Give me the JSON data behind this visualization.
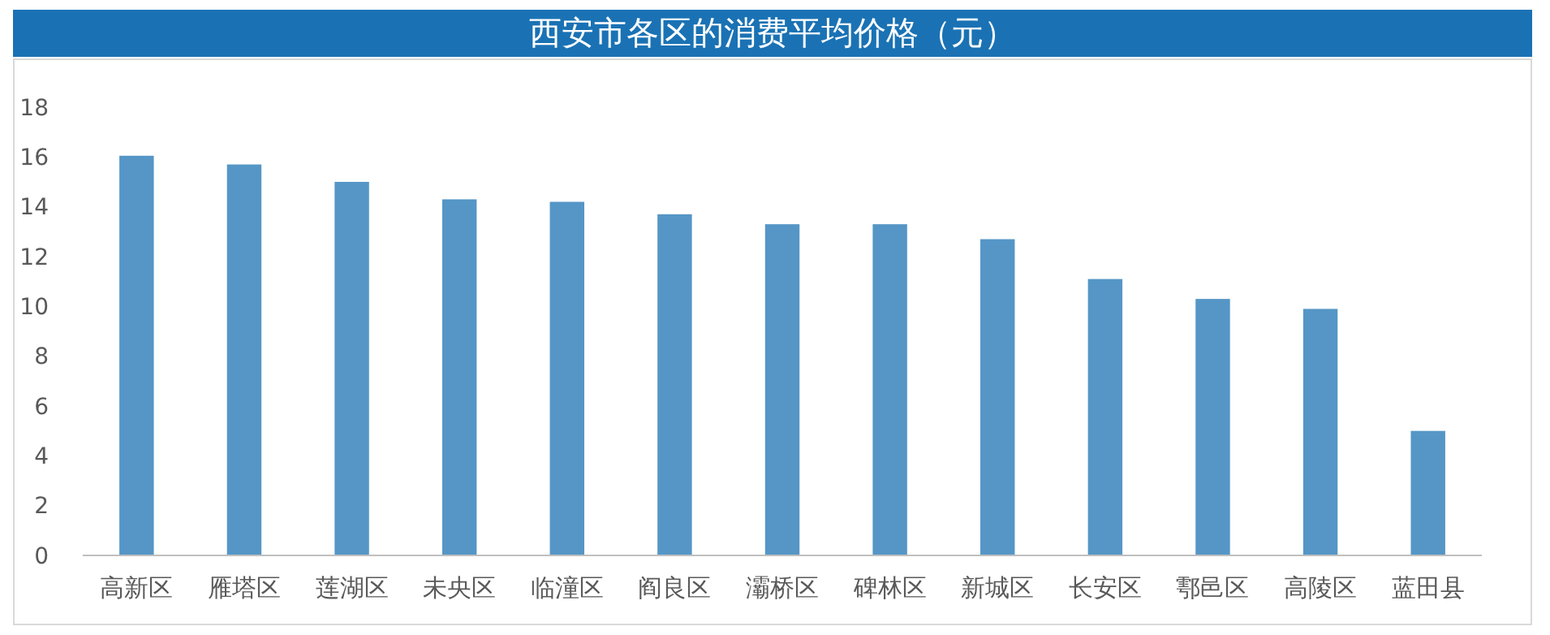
{
  "chart_data": {
    "type": "bar",
    "title": "西安市各区的消费平均价格（元）",
    "categories": [
      "高新区",
      "雁塔区",
      "莲湖区",
      "未央区",
      "临潼区",
      "阎良区",
      "灞桥区",
      "碑林区",
      "新城区",
      "长安区",
      "鄠邑区",
      "高陵区",
      "蓝田县"
    ],
    "values": [
      16.05,
      15.7,
      15.0,
      14.3,
      14.2,
      13.7,
      13.3,
      13.3,
      12.7,
      11.1,
      10.3,
      9.9,
      5.0
    ],
    "color": "#5596c6",
    "ylim": [
      0,
      18
    ],
    "yticks": [
      0,
      2,
      4,
      6,
      8,
      10,
      12,
      14,
      16,
      18
    ],
    "grid": false
  }
}
